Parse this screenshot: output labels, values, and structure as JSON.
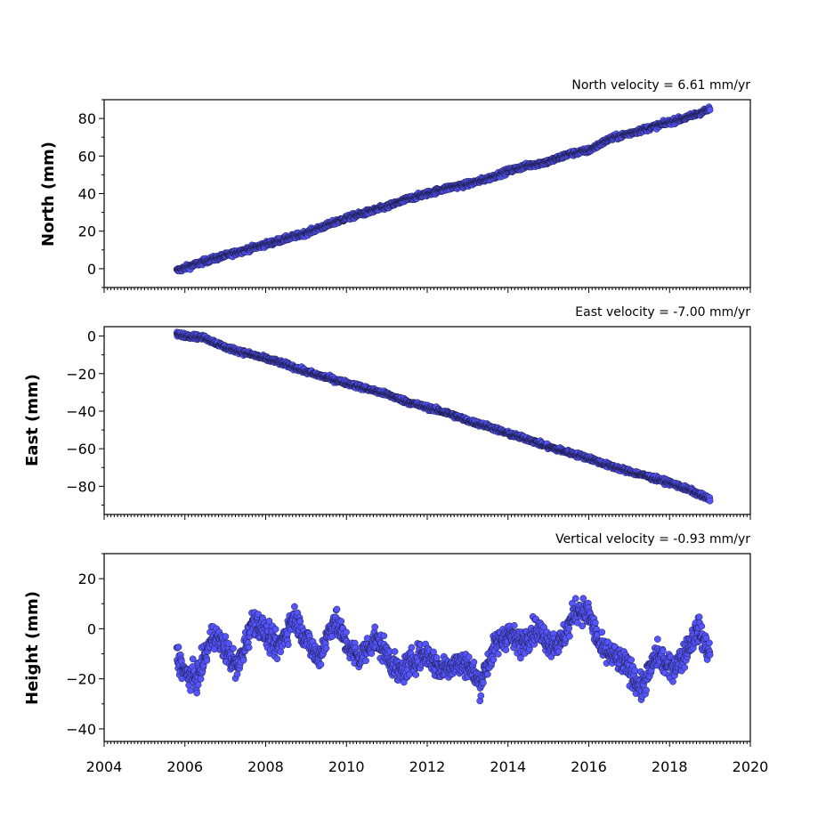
{
  "chart_data": {
    "type": "scatter",
    "xlim": [
      2004,
      2020
    ],
    "x_ticks": [
      "2004",
      "2006",
      "2008",
      "2010",
      "2012",
      "2014",
      "2016",
      "2018",
      "2020"
    ],
    "colors": {
      "marker_fill": "#5555ff",
      "marker_edge": "#1a1a40"
    },
    "panels": [
      {
        "title": "North velocity = 6.61 mm/yr",
        "ylabel": "North (mm)",
        "ylim": [
          -10,
          90
        ],
        "y_ticks": [
          "0",
          "20",
          "40",
          "60",
          "80"
        ],
        "y_tick_values": [
          0,
          20,
          40,
          60,
          80
        ],
        "series": [
          {
            "x": [
              2005.8,
              2006.5,
              2007.0,
              2007.5,
              2008.0,
              2008.5,
              2009.0,
              2009.5,
              2010.0,
              2010.5,
              2011.0,
              2011.5,
              2012.0,
              2012.5,
              2013.0,
              2013.5,
              2014.0,
              2014.5,
              2015.0,
              2015.5,
              2016.0,
              2016.5,
              2017.0,
              2017.5,
              2018.0,
              2018.5,
              2019.0
            ],
            "y": [
              -1,
              4,
              7,
              10,
              13,
              16,
              19,
              23,
              27,
              30,
              33,
              37,
              40,
              43,
              45,
              48,
              52,
              55,
              57,
              61,
              63,
              69,
              72,
              75,
              78,
              81,
              85
            ]
          }
        ]
      },
      {
        "title": "East velocity = -7.00 mm/yr",
        "ylabel": "East (mm)",
        "ylim": [
          -95,
          5
        ],
        "y_ticks": [
          "0",
          "−20",
          "−40",
          "−60",
          "−80"
        ],
        "y_tick_values": [
          0,
          -20,
          -40,
          -60,
          -80
        ],
        "series": [
          {
            "x": [
              2005.8,
              2006.5,
              2007.0,
              2007.5,
              2008.0,
              2008.5,
              2009.0,
              2009.5,
              2010.0,
              2010.5,
              2011.0,
              2011.5,
              2012.0,
              2012.5,
              2013.0,
              2013.5,
              2014.0,
              2014.5,
              2015.0,
              2015.5,
              2016.0,
              2016.5,
              2017.0,
              2017.5,
              2018.0,
              2018.5,
              2019.0
            ],
            "y": [
              1,
              -1,
              -6,
              -9,
              -12,
              -15,
              -19,
              -22,
              -25,
              -28,
              -31,
              -35,
              -38,
              -41,
              -45,
              -48,
              -52,
              -55,
              -59,
              -62,
              -65,
              -69,
              -72,
              -75,
              -78,
              -82,
              -87
            ]
          }
        ]
      },
      {
        "title": "Vertical velocity = -0.93 mm/yr",
        "ylabel": "Height (mm)",
        "ylim": [
          -45,
          30
        ],
        "y_ticks": [
          "20",
          "0",
          "−20",
          "−40"
        ],
        "y_tick_values": [
          20,
          0,
          -20,
          -40
        ],
        "series": [
          {
            "x": [
              2005.8,
              2006.0,
              2006.3,
              2006.7,
              2007.0,
              2007.3,
              2007.7,
              2008.0,
              2008.3,
              2008.7,
              2009.0,
              2009.3,
              2009.7,
              2010.0,
              2010.3,
              2010.7,
              2011.0,
              2011.3,
              2011.7,
              2012.0,
              2012.3,
              2012.7,
              2013.0,
              2013.3,
              2013.7,
              2014.0,
              2014.3,
              2014.7,
              2015.0,
              2015.3,
              2015.7,
              2016.0,
              2016.3,
              2016.7,
              2017.0,
              2017.3,
              2017.7,
              2018.0,
              2018.3,
              2018.7,
              2019.0
            ],
            "y": [
              -10,
              -18,
              -20,
              -2,
              -8,
              -16,
              4,
              -2,
              -8,
              5,
              -4,
              -12,
              4,
              -6,
              -12,
              -4,
              -10,
              -18,
              -12,
              -10,
              -16,
              -14,
              -14,
              -22,
              -6,
              -2,
              -6,
              0,
              -5,
              -6,
              8,
              6,
              -8,
              -12,
              -16,
              -24,
              -10,
              -16,
              -12,
              0,
              -10
            ]
          }
        ]
      }
    ]
  }
}
